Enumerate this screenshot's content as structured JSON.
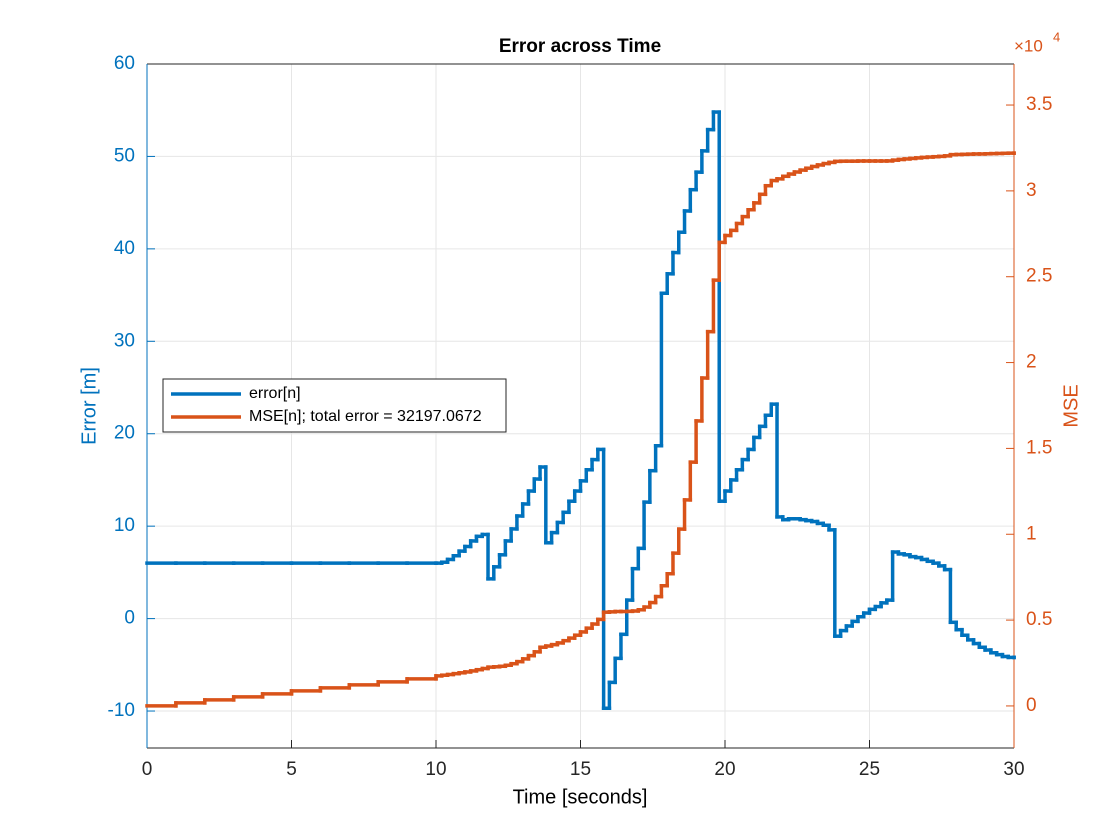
{
  "chart_data": {
    "type": "stairs",
    "title": "Error across Time",
    "xlabel": "Time [seconds]",
    "ylabel": "Error [m]",
    "y2label": "MSE",
    "y2_multiplier": {
      "base": "×10",
      "power": "4"
    },
    "xlim": [
      0,
      30
    ],
    "xticks": [
      0,
      5,
      10,
      15,
      20,
      25,
      30
    ],
    "ylim": [
      -14,
      60
    ],
    "yticks": [
      -10,
      0,
      10,
      20,
      30,
      40,
      50,
      60
    ],
    "y2lim": [
      -2450,
      37390
    ],
    "y2ticks": [
      0,
      {
        "value": 5000,
        "label": "0.5"
      },
      {
        "value": 10000,
        "label": "1"
      },
      {
        "value": 15000,
        "label": "1.5"
      },
      {
        "value": 20000,
        "label": "2"
      },
      {
        "value": 25000,
        "label": "2.5"
      },
      {
        "value": 30000,
        "label": "3"
      },
      {
        "value": 35000,
        "label": "3.5"
      }
    ],
    "grid": true,
    "legend": "left",
    "x": [
      0,
      1,
      2,
      3,
      4,
      5,
      6,
      7,
      8,
      9,
      10,
      10.2,
      10.4,
      10.6,
      10.8,
      11,
      11.2,
      11.4,
      11.6,
      11.8,
      12,
      12.2,
      12.4,
      12.6,
      12.8,
      13,
      13.2,
      13.4,
      13.6,
      13.8,
      14,
      14.2,
      14.4,
      14.6,
      14.8,
      15,
      15.2,
      15.4,
      15.6,
      15.8,
      16,
      16.2,
      16.4,
      16.6,
      16.8,
      17,
      17.2,
      17.4,
      17.6,
      17.8,
      18,
      18.2,
      18.4,
      18.6,
      18.8,
      19,
      19.2,
      19.4,
      19.6,
      19.8,
      20,
      20.2,
      20.4,
      20.6,
      20.8,
      21,
      21.2,
      21.4,
      21.6,
      21.8,
      22,
      22.2,
      22.4,
      22.6,
      22.8,
      23,
      23.2,
      23.4,
      23.6,
      23.8,
      24,
      24.2,
      24.4,
      24.6,
      24.8,
      25,
      25.2,
      25.4,
      25.6,
      25.8,
      26,
      26.2,
      26.4,
      26.6,
      26.8,
      27,
      27.2,
      27.4,
      27.6,
      27.8,
      28,
      28.2,
      28.4,
      28.6,
      28.8,
      29,
      29.2,
      29.4,
      29.6,
      29.8,
      30
    ],
    "series": [
      {
        "name": "error[n]",
        "color": "#0072BD",
        "axis": "y",
        "values": [
          6,
          6,
          6,
          6,
          6,
          6,
          6,
          6,
          6,
          6,
          6,
          6.1,
          6.4,
          6.8,
          7.3,
          7.8,
          8.4,
          8.9,
          9.1,
          4.3,
          5.6,
          6.9,
          8.4,
          9.7,
          11.1,
          12.4,
          13.8,
          15.1,
          16.4,
          8.2,
          9.3,
          10.4,
          11.5,
          12.7,
          13.8,
          14.9,
          16.1,
          17.2,
          18.3,
          -9.7,
          -6.9,
          -4.3,
          -1.7,
          2,
          5.4,
          7.6,
          12.6,
          16,
          18.7,
          35.2,
          37.3,
          39.6,
          41.8,
          44.1,
          46.4,
          48.3,
          50.6,
          52.9,
          54.8,
          12.7,
          13.8,
          15,
          16.1,
          17.2,
          18.3,
          19.6,
          20.8,
          22,
          23.2,
          11,
          10.7,
          10.8,
          10.8,
          10.7,
          10.6,
          10.5,
          10.3,
          10.1,
          9.6,
          -1.9,
          -1.3,
          -0.8,
          -0.3,
          0.2,
          0.6,
          1,
          1.3,
          1.7,
          2,
          7.2,
          7,
          6.9,
          6.7,
          6.6,
          6.4,
          6.2,
          6,
          5.7,
          5.3,
          -0.4,
          -1.2,
          -1.8,
          -2.3,
          -2.7,
          -3.1,
          -3.4,
          -3.7,
          -3.9,
          -4.1,
          -4.2,
          -4.2
        ]
      },
      {
        "name": "MSE[n]; total error = 32197.0672",
        "color": "#D95319",
        "axis": "y2",
        "values": [
          0,
          175,
          350,
          525,
          700,
          875,
          1050,
          1225,
          1400,
          1575,
          1750,
          1790,
          1830,
          1880,
          1930,
          1980,
          2040,
          2110,
          2180,
          2260,
          2280,
          2310,
          2370,
          2460,
          2580,
          2740,
          2930,
          3150,
          3420,
          3490,
          3570,
          3670,
          3800,
          3950,
          4120,
          4310,
          4530,
          4770,
          5040,
          5460,
          5480,
          5500,
          5500,
          5510,
          5530,
          5600,
          5760,
          6020,
          6370,
          7000,
          7700,
          8900,
          10300,
          12000,
          14200,
          16600,
          19100,
          21800,
          24800,
          27000,
          27400,
          27700,
          28100,
          28500,
          28900,
          29300,
          29800,
          30300,
          30600,
          30700,
          30850,
          30980,
          31100,
          31210,
          31320,
          31420,
          31510,
          31590,
          31660,
          31720,
          31730,
          31730,
          31730,
          31740,
          31740,
          31740,
          31740,
          31740,
          31745,
          31790,
          31830,
          31860,
          31890,
          31920,
          31950,
          31970,
          31990,
          32010,
          32040,
          32110,
          32120,
          32130,
          32140,
          32150,
          32150,
          32160,
          32170,
          32180,
          32190,
          32197,
          32197
        ]
      }
    ]
  }
}
